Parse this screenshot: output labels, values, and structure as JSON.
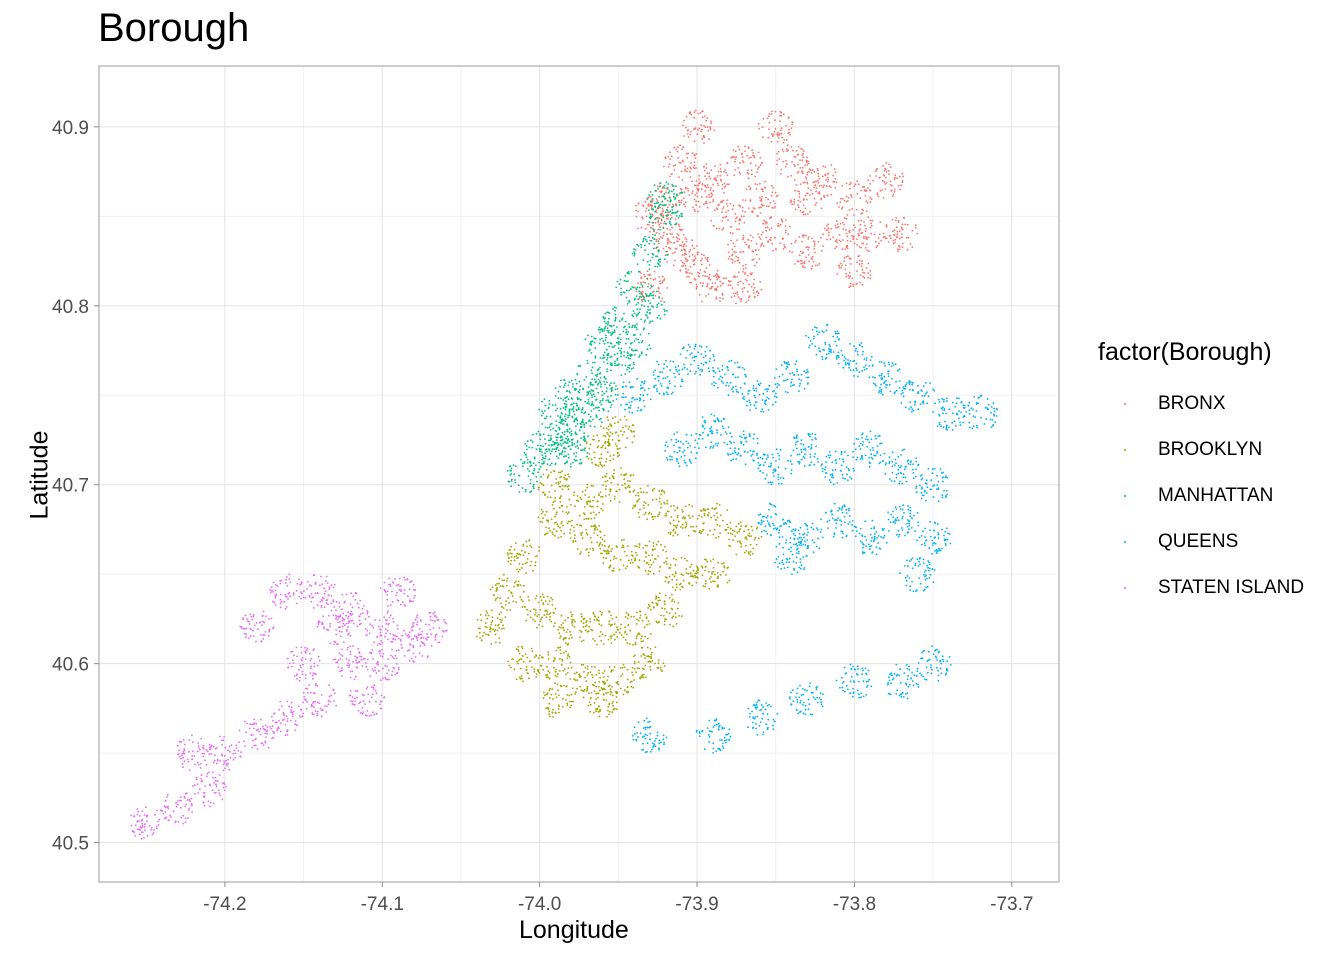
{
  "chart_data": {
    "type": "scatter",
    "title": "Borough",
    "xlabel": "Longitude",
    "ylabel": "Latitude",
    "xlim": [
      -74.28,
      -73.67
    ],
    "ylim": [
      40.478,
      40.934
    ],
    "x_ticks": [
      -74.2,
      -74.1,
      -74.0,
      -73.9,
      -73.8,
      -73.7
    ],
    "x_tick_labels": [
      "-74.2",
      "-74.1",
      "-74.0",
      "-73.9",
      "-73.8",
      "-73.7"
    ],
    "y_ticks": [
      40.5,
      40.6,
      40.7,
      40.8,
      40.9
    ],
    "y_tick_labels": [
      "40.5",
      "40.6",
      "40.7",
      "40.8",
      "40.9"
    ],
    "grid": true,
    "legend": {
      "title": "factor(Borough)",
      "position": "right"
    },
    "series": [
      {
        "name": "BRONX",
        "color": "#F8766D",
        "points": [
          [
            -73.93,
            40.81
          ],
          [
            -73.93,
            40.85
          ],
          [
            -73.92,
            40.84
          ],
          [
            -73.91,
            40.83
          ],
          [
            -73.9,
            40.82
          ],
          [
            -73.9,
            40.86
          ],
          [
            -73.91,
            40.88
          ],
          [
            -73.9,
            40.9
          ],
          [
            -73.89,
            40.87
          ],
          [
            -73.88,
            40.85
          ],
          [
            -73.87,
            40.83
          ],
          [
            -73.87,
            40.88
          ],
          [
            -73.86,
            40.86
          ],
          [
            -73.85,
            40.9
          ],
          [
            -73.85,
            40.84
          ],
          [
            -73.84,
            40.88
          ],
          [
            -73.83,
            40.86
          ],
          [
            -73.83,
            40.83
          ],
          [
            -73.82,
            40.87
          ],
          [
            -73.81,
            40.84
          ],
          [
            -73.8,
            40.82
          ],
          [
            -73.8,
            40.86
          ],
          [
            -73.79,
            40.84
          ],
          [
            -73.87,
            40.81
          ],
          [
            -73.89,
            40.81
          ],
          [
            -73.92,
            40.86
          ],
          [
            -73.78,
            40.87
          ],
          [
            -73.77,
            40.84
          ]
        ]
      },
      {
        "name": "BROOKLYN",
        "color": "#A3A500",
        "points": [
          [
            -73.99,
            40.7
          ],
          [
            -73.97,
            40.69
          ],
          [
            -73.95,
            40.7
          ],
          [
            -73.93,
            40.69
          ],
          [
            -73.91,
            40.68
          ],
          [
            -73.89,
            40.68
          ],
          [
            -73.87,
            40.67
          ],
          [
            -73.95,
            40.73
          ],
          [
            -73.96,
            40.72
          ],
          [
            -73.99,
            40.68
          ],
          [
            -73.97,
            40.67
          ],
          [
            -73.95,
            40.66
          ],
          [
            -73.93,
            40.66
          ],
          [
            -73.91,
            40.65
          ],
          [
            -73.89,
            40.65
          ],
          [
            -74.01,
            40.66
          ],
          [
            -74.02,
            40.64
          ],
          [
            -74.0,
            40.63
          ],
          [
            -73.98,
            40.62
          ],
          [
            -73.96,
            40.62
          ],
          [
            -73.94,
            40.62
          ],
          [
            -73.92,
            40.63
          ],
          [
            -74.03,
            40.62
          ],
          [
            -74.01,
            40.6
          ],
          [
            -73.99,
            40.6
          ],
          [
            -73.97,
            40.59
          ],
          [
            -73.95,
            40.59
          ],
          [
            -73.93,
            40.6
          ],
          [
            -73.99,
            40.58
          ],
          [
            -73.96,
            40.58
          ]
        ]
      },
      {
        "name": "MANHATTAN",
        "color": "#00BF7D",
        "points": [
          [
            -74.01,
            40.705
          ],
          [
            -74.0,
            40.72
          ],
          [
            -73.99,
            40.74
          ],
          [
            -73.98,
            40.75
          ],
          [
            -73.97,
            40.76
          ],
          [
            -73.96,
            40.78
          ],
          [
            -73.95,
            40.79
          ],
          [
            -73.94,
            40.81
          ],
          [
            -73.93,
            40.83
          ],
          [
            -73.92,
            40.85
          ],
          [
            -73.92,
            40.86
          ],
          [
            -73.98,
            40.72
          ],
          [
            -73.97,
            40.74
          ],
          [
            -73.96,
            40.75
          ],
          [
            -73.95,
            40.77
          ],
          [
            -73.94,
            40.78
          ],
          [
            -73.93,
            40.8
          ],
          [
            -73.99,
            40.72
          ],
          [
            -73.98,
            40.73
          ]
        ]
      },
      {
        "name": "QUEENS",
        "color": "#00B0F6",
        "points": [
          [
            -73.94,
            40.75
          ],
          [
            -73.92,
            40.76
          ],
          [
            -73.9,
            40.77
          ],
          [
            -73.88,
            40.76
          ],
          [
            -73.86,
            40.75
          ],
          [
            -73.84,
            40.76
          ],
          [
            -73.82,
            40.78
          ],
          [
            -73.8,
            40.77
          ],
          [
            -73.78,
            40.76
          ],
          [
            -73.76,
            40.75
          ],
          [
            -73.74,
            40.74
          ],
          [
            -73.72,
            40.74
          ],
          [
            -73.91,
            40.72
          ],
          [
            -73.89,
            40.73
          ],
          [
            -73.87,
            40.72
          ],
          [
            -73.85,
            40.71
          ],
          [
            -73.83,
            40.72
          ],
          [
            -73.81,
            40.71
          ],
          [
            -73.79,
            40.72
          ],
          [
            -73.77,
            40.71
          ],
          [
            -73.75,
            40.7
          ],
          [
            -73.85,
            40.68
          ],
          [
            -73.83,
            40.67
          ],
          [
            -73.81,
            40.68
          ],
          [
            -73.79,
            40.67
          ],
          [
            -73.77,
            40.68
          ],
          [
            -73.75,
            40.67
          ],
          [
            -73.84,
            40.66
          ],
          [
            -73.76,
            40.65
          ],
          [
            -73.75,
            40.6
          ],
          [
            -73.77,
            40.59
          ],
          [
            -73.8,
            40.59
          ],
          [
            -73.83,
            40.58
          ],
          [
            -73.86,
            40.57
          ],
          [
            -73.93,
            40.56
          ],
          [
            -73.89,
            40.56
          ]
        ]
      },
      {
        "name": "STATEN ISLAND",
        "color": "#E76BF3",
        "points": [
          [
            -74.25,
            40.51
          ],
          [
            -74.23,
            40.52
          ],
          [
            -74.21,
            40.53
          ],
          [
            -74.2,
            40.55
          ],
          [
            -74.18,
            40.56
          ],
          [
            -74.16,
            40.57
          ],
          [
            -74.14,
            40.58
          ],
          [
            -74.12,
            40.6
          ],
          [
            -74.1,
            40.62
          ],
          [
            -74.09,
            40.64
          ],
          [
            -74.16,
            40.64
          ],
          [
            -74.14,
            40.64
          ],
          [
            -74.12,
            40.63
          ],
          [
            -74.1,
            40.6
          ],
          [
            -74.08,
            40.61
          ],
          [
            -74.15,
            40.6
          ],
          [
            -74.13,
            40.62
          ],
          [
            -74.18,
            40.62
          ],
          [
            -74.22,
            40.55
          ],
          [
            -74.11,
            40.58
          ],
          [
            -74.07,
            40.62
          ]
        ]
      }
    ]
  }
}
